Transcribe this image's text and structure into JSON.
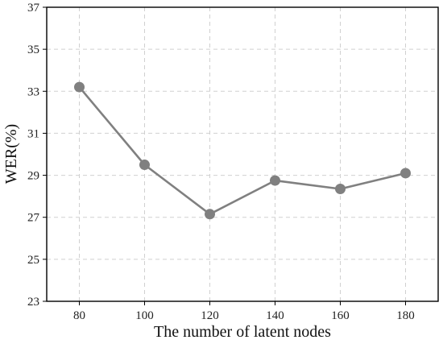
{
  "chart_data": {
    "type": "line",
    "title": "",
    "xlabel": "The number of latent nodes",
    "ylabel": "WER(%)",
    "x": [
      80,
      100,
      120,
      140,
      160,
      180
    ],
    "xticks": [
      "80",
      "100",
      "120",
      "140",
      "160",
      "180"
    ],
    "xlim": [
      70,
      190
    ],
    "yticks": [
      "23",
      "25",
      "27",
      "29",
      "31",
      "33",
      "35",
      "37"
    ],
    "ylim": [
      23,
      37
    ],
    "grid": true,
    "series": [
      {
        "values": [
          33.2,
          29.5,
          27.15,
          28.75,
          28.35,
          29.1
        ],
        "color": "#808080",
        "marker": "circle"
      }
    ]
  }
}
